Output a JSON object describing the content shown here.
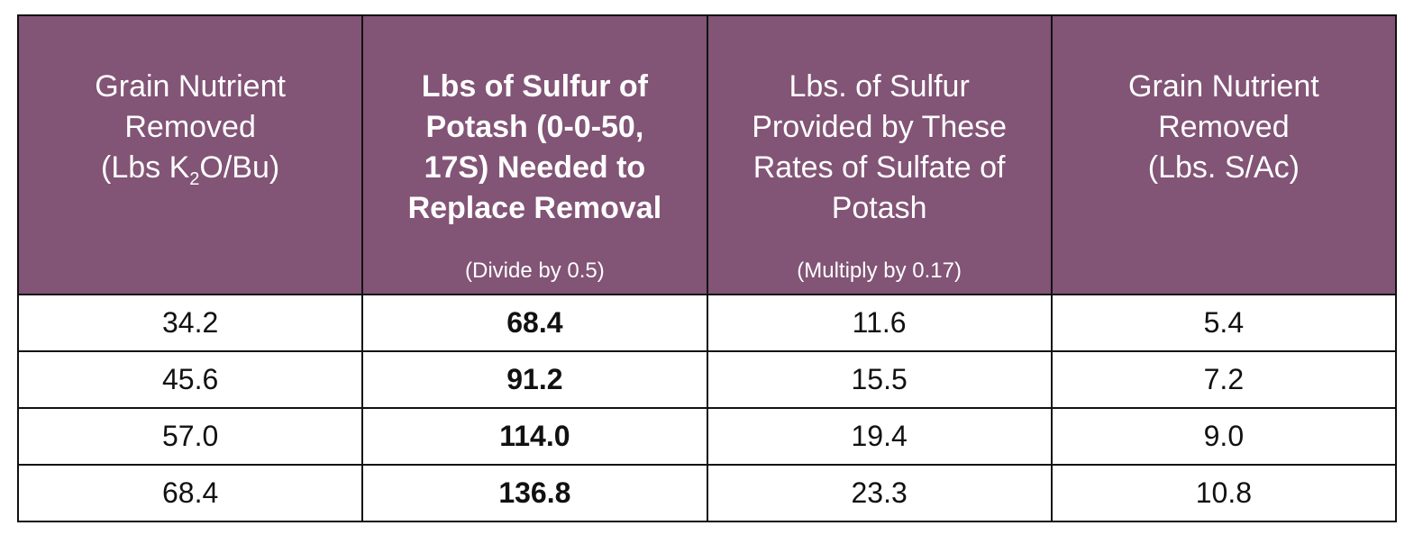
{
  "headers": [
    {
      "lines": [
        "Grain Nutrient",
        "Removed"
      ],
      "unit_prefix": "(Lbs K",
      "unit_sub": "2",
      "unit_suffix": "O/Bu)",
      "note": ""
    },
    {
      "lines": [
        "Lbs of Sulfur of",
        "Potash (0-0-50,",
        "17S) Needed to",
        "Replace Removal"
      ],
      "note": "(Divide by 0.5)"
    },
    {
      "lines": [
        "Lbs. of Sulfur",
        "Provided by These",
        "Rates of Sulfate of",
        "Potash"
      ],
      "note": "(Multiply by 0.17)"
    },
    {
      "lines": [
        "Grain Nutrient",
        "Removed",
        "(Lbs. S/Ac)"
      ],
      "note": ""
    }
  ],
  "rows": [
    [
      "34.2",
      "68.4",
      "11.6",
      "5.4"
    ],
    [
      "45.6",
      "91.2",
      "15.5",
      "7.2"
    ],
    [
      "57.0",
      "114.0",
      "19.4",
      "9.0"
    ],
    [
      "68.4",
      "136.8",
      "23.3",
      "10.8"
    ]
  ],
  "colors": {
    "header_background": "#825476",
    "header_text": "#ffffff",
    "border": "#111111"
  }
}
